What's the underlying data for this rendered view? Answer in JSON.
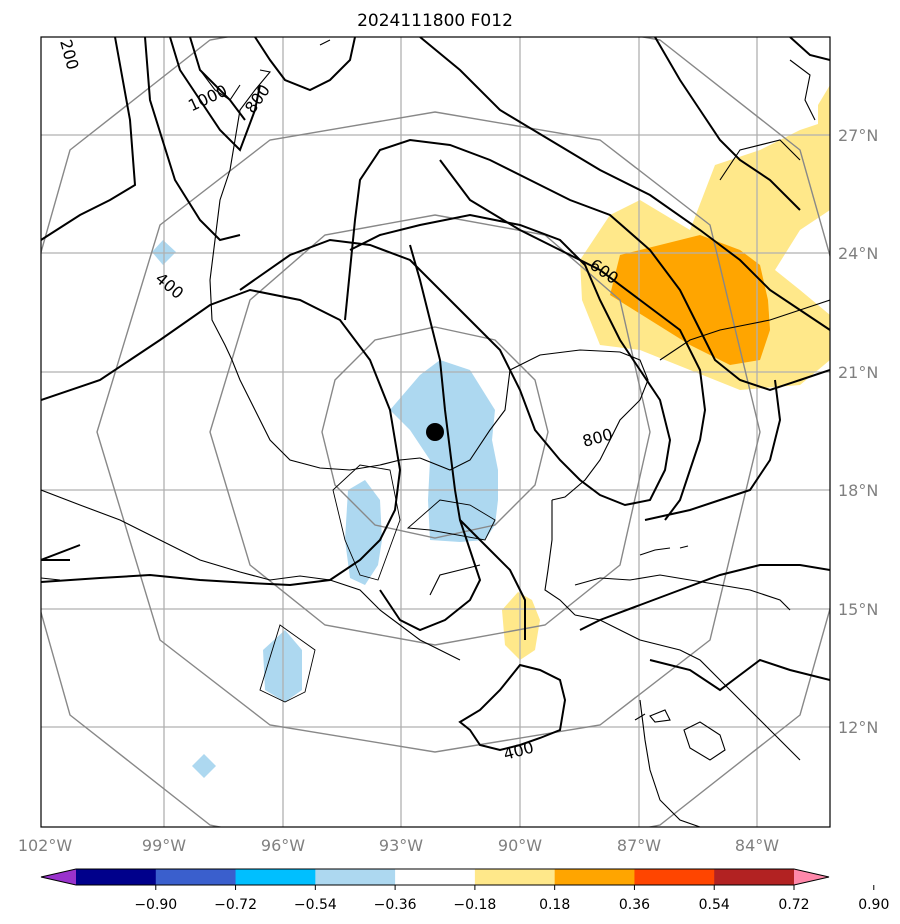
{
  "title": "2024111800 F012",
  "longitude_labels": [
    "102°W",
    "99°W",
    "96°W",
    "93°W",
    "90°W",
    "87°W",
    "84°W"
  ],
  "latitude_labels": [
    "27°N",
    "24°N",
    "21°N",
    "18°N",
    "15°N",
    "12°N"
  ],
  "contour_labels": [
    "200",
    "1000",
    "800",
    "400",
    "600",
    "800",
    "400"
  ],
  "colorbar": {
    "ticks": [
      "−0.90",
      "−0.72",
      "−0.54",
      "−0.36",
      "−0.18",
      "0.18",
      "0.36",
      "0.54",
      "0.72",
      "0.90"
    ],
    "colors": [
      "#9932cc",
      "#00008b",
      "#3a5fcd",
      "#00bfff",
      "#add8f0",
      "#ffffff",
      "#ffe88a",
      "#ffa500",
      "#ff4500",
      "#b22222",
      "#ff88aa"
    ]
  },
  "storm_center": {
    "lon": -92.0,
    "lat": 19.5
  },
  "map_extent": {
    "lon": [
      -102.0,
      -82.0
    ],
    "lat": [
      10.0,
      30.0
    ]
  }
}
